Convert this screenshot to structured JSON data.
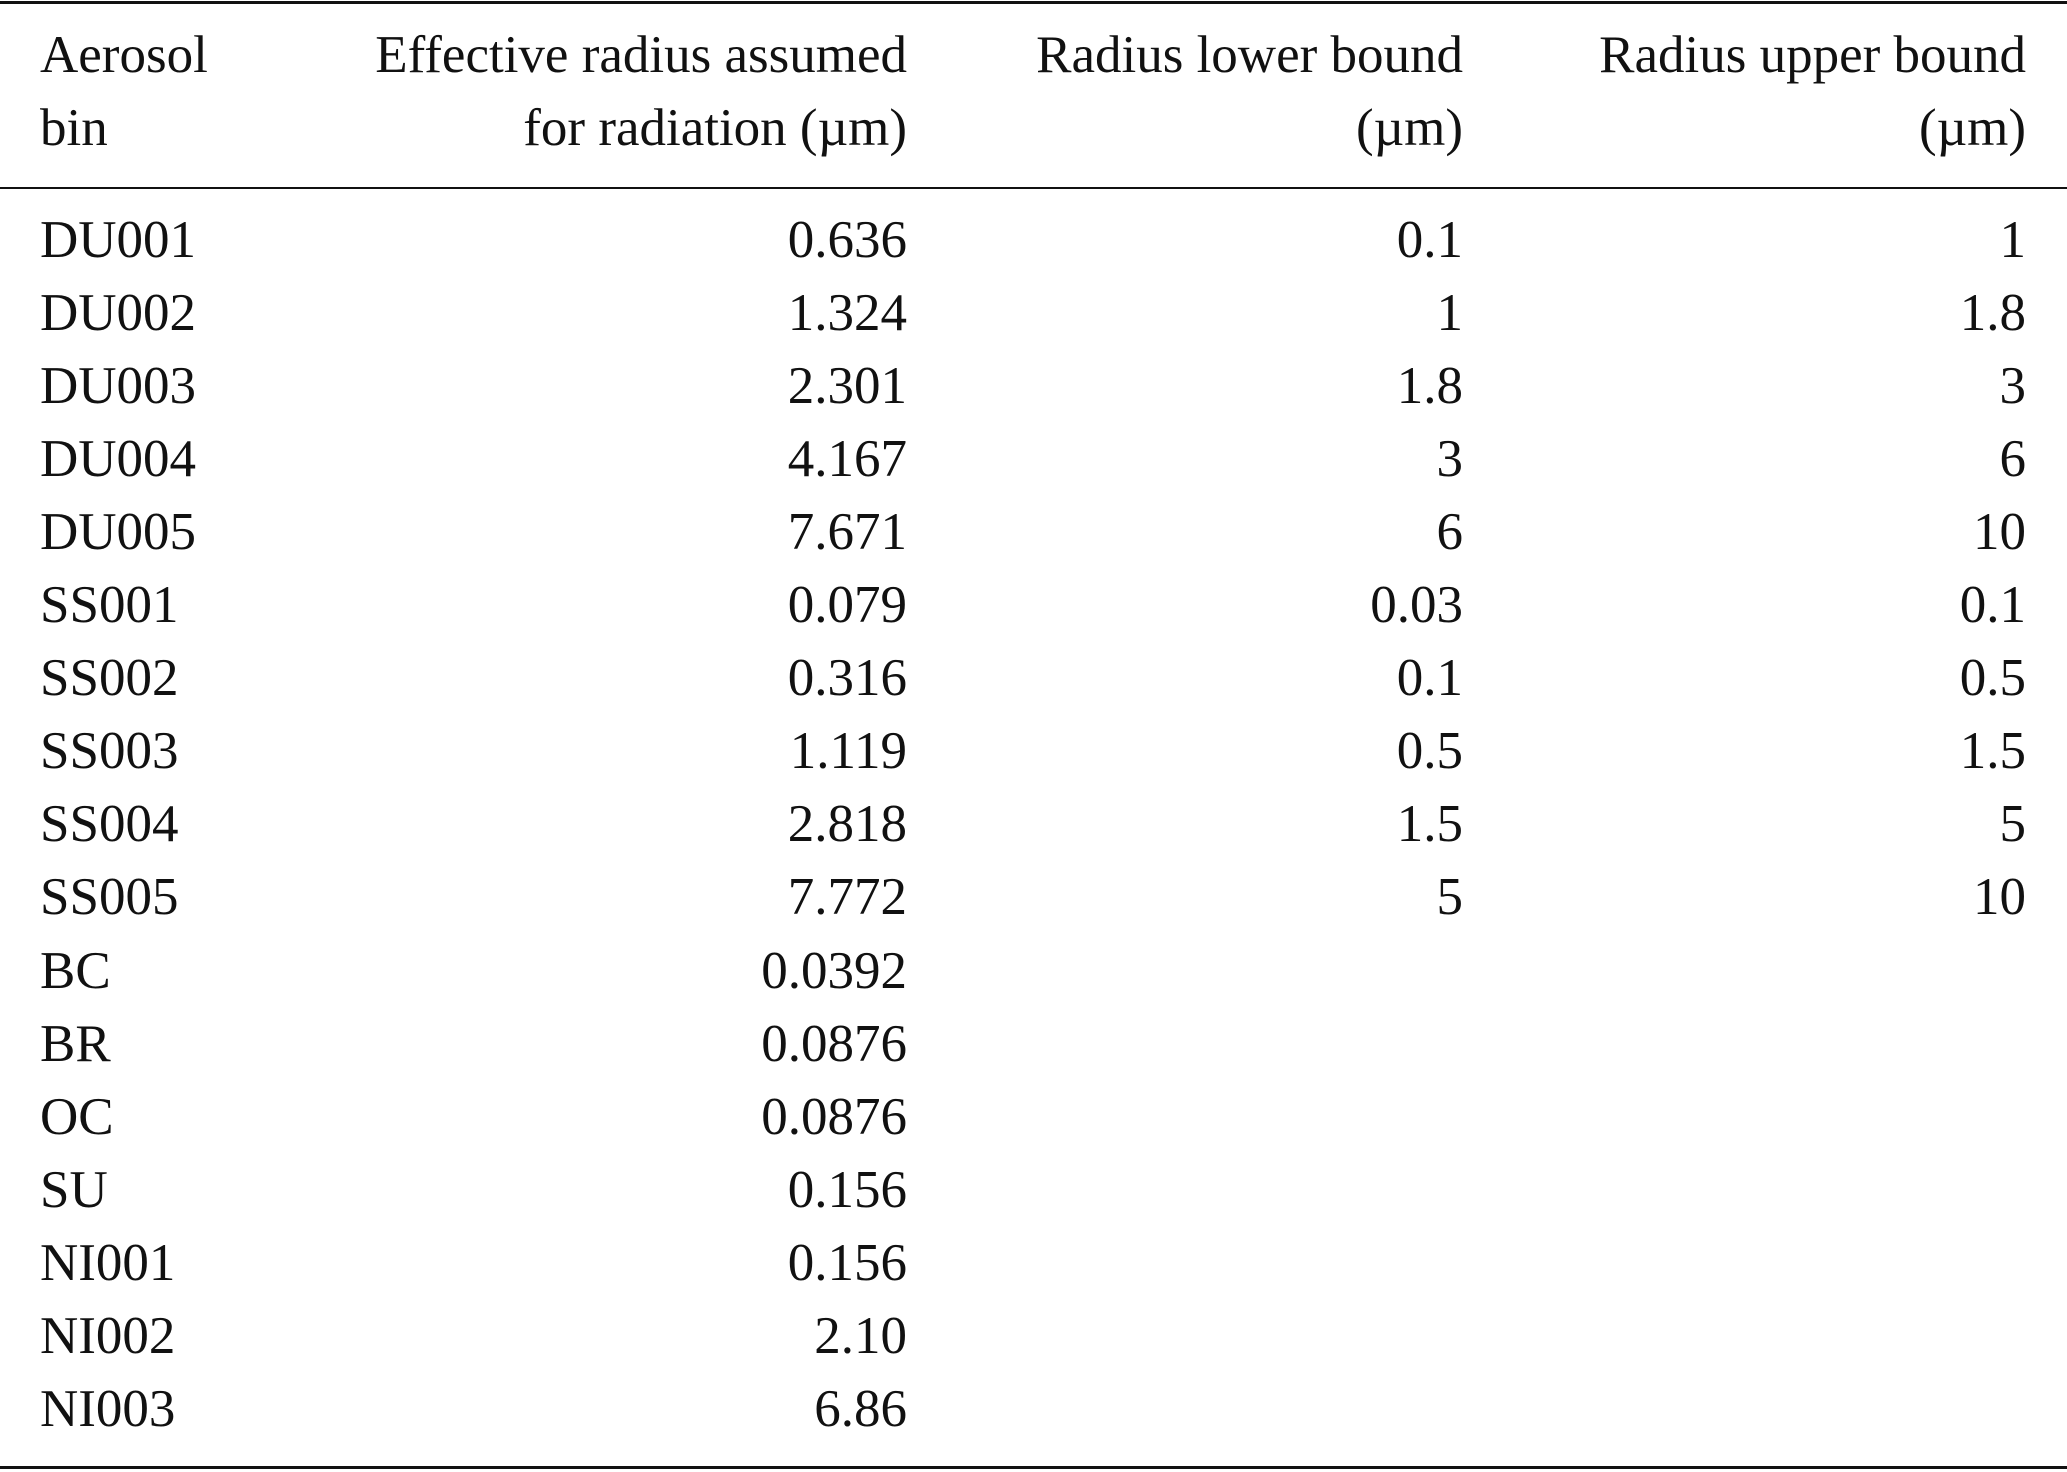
{
  "table": {
    "header": [
      [
        "Aerosol",
        "bin"
      ],
      [
        "Effective radius assumed",
        "for radiation (µm)"
      ],
      [
        "Radius lower bound",
        "(µm)"
      ],
      [
        "Radius upper bound",
        "(µm)"
      ]
    ],
    "rows": [
      [
        "DU001",
        "0.636",
        "0.1",
        "1"
      ],
      [
        "DU002",
        "1.324",
        "1",
        "1.8"
      ],
      [
        "DU003",
        "2.301",
        "1.8",
        "3"
      ],
      [
        "DU004",
        "4.167",
        "3",
        "6"
      ],
      [
        "DU005",
        "7.671",
        "6",
        "10"
      ],
      [
        "SS001",
        "0.079",
        "0.03",
        "0.1"
      ],
      [
        "SS002",
        "0.316",
        "0.1",
        "0.5"
      ],
      [
        "SS003",
        "1.119",
        "0.5",
        "1.5"
      ],
      [
        "SS004",
        "2.818",
        "1.5",
        "5"
      ],
      [
        "SS005",
        "7.772",
        "5",
        "10"
      ],
      [
        "BC",
        "0.0392"
      ],
      [
        "BR",
        "0.0876"
      ],
      [
        "OC",
        "0.0876"
      ],
      [
        "SU",
        "0.156"
      ],
      [
        "NI001",
        "0.156"
      ],
      [
        "NI002",
        "2.10"
      ],
      [
        "NI003",
        "6.86"
      ]
    ]
  }
}
